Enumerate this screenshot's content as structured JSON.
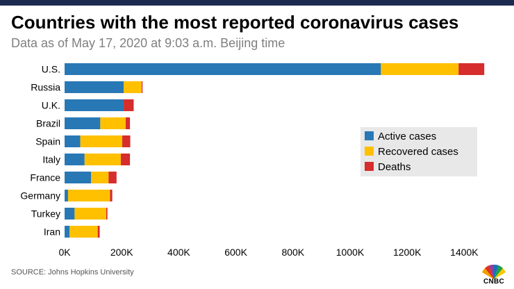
{
  "header": {
    "title": "Countries with the most reported coronavirus cases",
    "subtitle": "Data as of May 17, 2020 at 9:03 a.m. Beijing time"
  },
  "footer": {
    "source": "SOURCE: Johns Hopkins University",
    "logo_text": "CNBC"
  },
  "colors": {
    "active": "#2878b5",
    "recovered": "#ffc000",
    "deaths": "#d62d2d",
    "legend_bg": "#e8e8e8",
    "top_bar": "#1d2a4f"
  },
  "chart_data": {
    "type": "bar",
    "orientation": "horizontal",
    "stacked": true,
    "categories": [
      "U.S.",
      "Russia",
      "U.K.",
      "Brazil",
      "Spain",
      "Italy",
      "France",
      "Germany",
      "Turkey",
      "Iran"
    ],
    "series": [
      {
        "name": "Active cases",
        "values": [
          1108000,
          207000,
          207000,
          125000,
          55000,
          70000,
          93000,
          12000,
          35000,
          17000
        ]
      },
      {
        "name": "Recovered cases",
        "values": [
          272000,
          63000,
          0,
          89000,
          147000,
          127000,
          61000,
          147000,
          111000,
          99000
        ]
      },
      {
        "name": "Deaths",
        "values": [
          90000,
          3000,
          35000,
          15000,
          28000,
          32000,
          28000,
          8000,
          4000,
          7000
        ]
      }
    ],
    "xlim": [
      0,
      1450000
    ],
    "xticks": [
      "0K",
      "200K",
      "400K",
      "600K",
      "800K",
      "1000K",
      "1200K",
      "1400K"
    ],
    "xtick_values": [
      0,
      200000,
      400000,
      600000,
      800000,
      1000000,
      1200000,
      1400000
    ],
    "legend": "right-center",
    "grid": false
  }
}
